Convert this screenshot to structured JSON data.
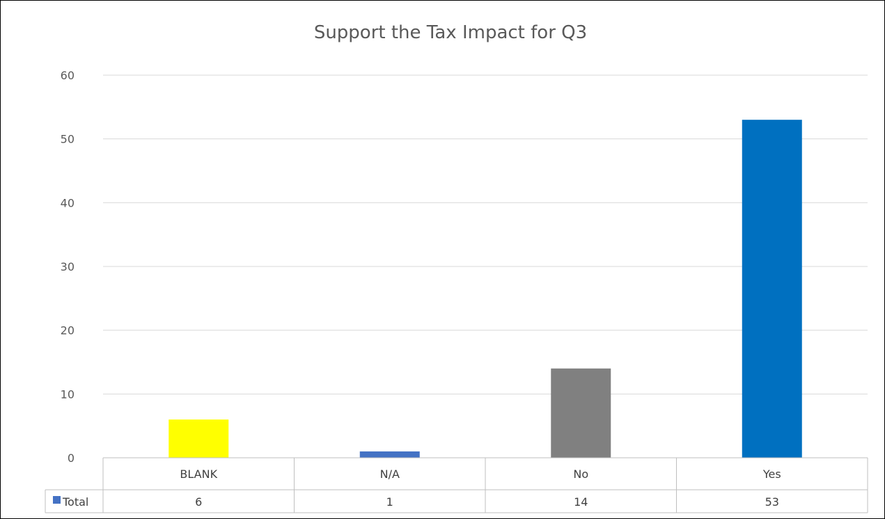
{
  "chart_data": {
    "type": "bar",
    "title": "Support the Tax Impact for Q3",
    "categories": [
      "BLANK",
      "N/A",
      "No",
      "Yes"
    ],
    "series": [
      {
        "name": "Total",
        "values": [
          6,
          1,
          14,
          53
        ],
        "color": "#4472C4"
      }
    ],
    "bar_colors": [
      "#FFFF00",
      "#4472C4",
      "#808080",
      "#0070C0"
    ],
    "ylim": [
      0,
      60
    ],
    "yticks": [
      0,
      10,
      20,
      30,
      40,
      50,
      60
    ],
    "xlabel": "",
    "ylabel": "",
    "grid": true,
    "legend": "data-table",
    "data_table": true
  }
}
